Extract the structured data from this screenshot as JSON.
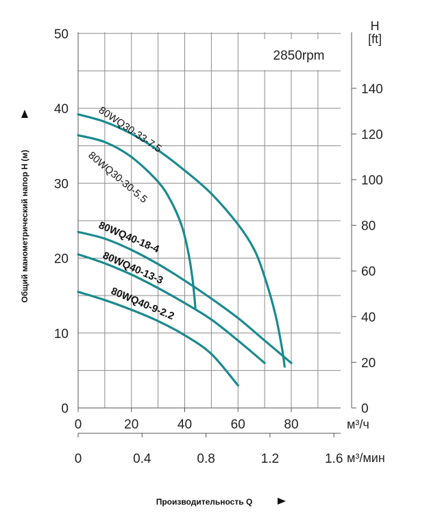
{
  "chart_data": {
    "type": "line",
    "speed_label": "2850rpm",
    "y_left": {
      "range": [
        0,
        50
      ],
      "ticks": [
        "0",
        "10",
        "20",
        "30",
        "40",
        "50"
      ]
    },
    "y_right": {
      "unit_top": "H",
      "unit_bottom": "[ft]",
      "range": [
        0,
        164
      ],
      "ticks": [
        "0",
        "20",
        "40",
        "60",
        "80",
        "100",
        "120",
        "140"
      ]
    },
    "x_m3h": {
      "unit": "м³/ч",
      "range": [
        0,
        100
      ],
      "ticks": [
        "0",
        "20",
        "40",
        "60",
        "80"
      ]
    },
    "x_m3min": {
      "unit": "м³/мин",
      "range": [
        0,
        1.6667
      ],
      "ticks": [
        "0",
        "0.4",
        "0.8",
        "1.2",
        "1.6"
      ]
    },
    "ylabel": "Общий манометрический напор H (м)",
    "xlabel": "Производительность Q",
    "grid": true,
    "series": [
      {
        "name": "80WQ30-33-7.5",
        "bold": false,
        "x": [
          0,
          10,
          20,
          30,
          40,
          50,
          60,
          66,
          70,
          74,
          76.5,
          77.5
        ],
        "y": [
          39.2,
          38.2,
          36.6,
          34.4,
          31.7,
          28.6,
          24.5,
          21.2,
          17.5,
          12.5,
          8.0,
          5.5
        ]
      },
      {
        "name": "80WQ30-30-5.5",
        "bold": false,
        "x": [
          0,
          10,
          20,
          30,
          35,
          39,
          41.5,
          43,
          44
        ],
        "y": [
          36.4,
          35.5,
          33.5,
          30.2,
          27.5,
          24.2,
          20.5,
          17.0,
          13.4
        ]
      },
      {
        "name": "80WQ40-18-4",
        "bold": true,
        "x": [
          0,
          10,
          20,
          30,
          40,
          50,
          60,
          70,
          80
        ],
        "y": [
          23.5,
          22.6,
          21.1,
          19.2,
          17.0,
          14.6,
          12.0,
          9.0,
          6.0
        ]
      },
      {
        "name": "80WQ40-13-3",
        "bold": true,
        "x": [
          0,
          10,
          20,
          30,
          40,
          50,
          60,
          70
        ],
        "y": [
          20.5,
          19.3,
          17.8,
          16.0,
          14.0,
          11.8,
          9.0,
          6.0
        ]
      },
      {
        "name": "80WQ40-9-2.2",
        "bold": true,
        "x": [
          0,
          10,
          20,
          30,
          40,
          50,
          60
        ],
        "y": [
          15.5,
          14.4,
          13.1,
          11.6,
          9.7,
          7.2,
          3.0
        ]
      }
    ]
  }
}
